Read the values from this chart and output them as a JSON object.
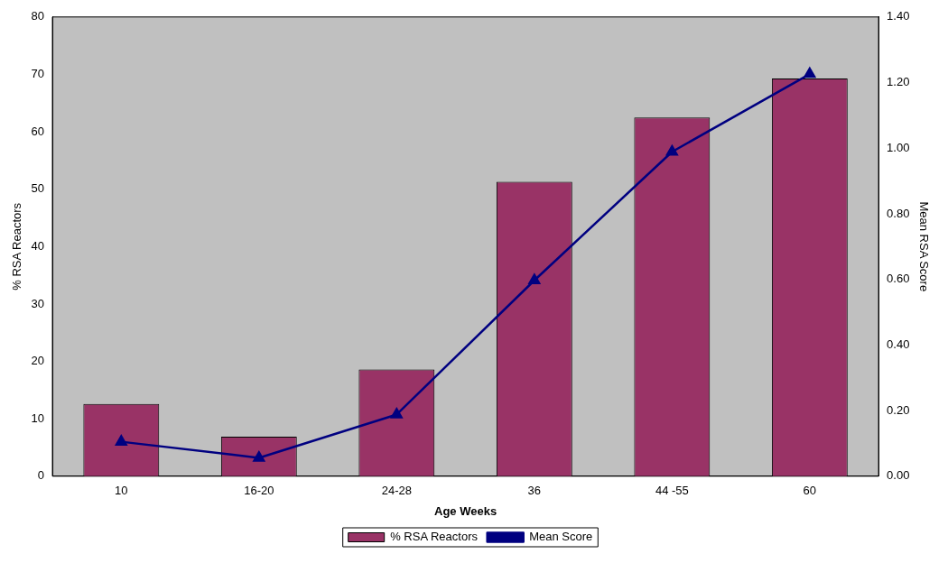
{
  "chart_data": {
    "type": "bar",
    "xlabel": "Age Weeks",
    "ylabel": "% RSA Reactors",
    "y2label": "Mean RSA Score",
    "categories": [
      "10",
      "16-20",
      "24-28",
      "36",
      "44 -55",
      "60"
    ],
    "series": [
      {
        "name": "% RSA Reactors",
        "color": "#993366",
        "values": [
          12.6,
          6.9,
          18.6,
          51.3,
          62.5,
          69.3
        ]
      },
      {
        "name": "Mean Score",
        "type": "line",
        "axis": "y2",
        "color": "#000080",
        "marker": "triangle",
        "values": [
          0.105,
          0.056,
          0.188,
          0.597,
          0.989,
          1.226
        ]
      }
    ],
    "ylim": [
      0,
      80
    ],
    "yticks": [
      0,
      10,
      20,
      30,
      40,
      50,
      60,
      70,
      80
    ],
    "y2lim": [
      0,
      1.4
    ],
    "y2ticks": [
      {
        "value": 0,
        "label": "0.00"
      },
      {
        "value": 0.2,
        "label": "0.20"
      },
      {
        "value": 0.4,
        "label": "0.40"
      },
      {
        "value": 0.6,
        "label": "0.60"
      },
      {
        "value": 0.8,
        "label": "0.80"
      },
      {
        "value": 1.0,
        "label": "1.00"
      },
      {
        "value": 1.2,
        "label": "1.20"
      },
      {
        "value": 1.4,
        "label": "1.40"
      }
    ],
    "grid": false,
    "legend": "bottom"
  }
}
